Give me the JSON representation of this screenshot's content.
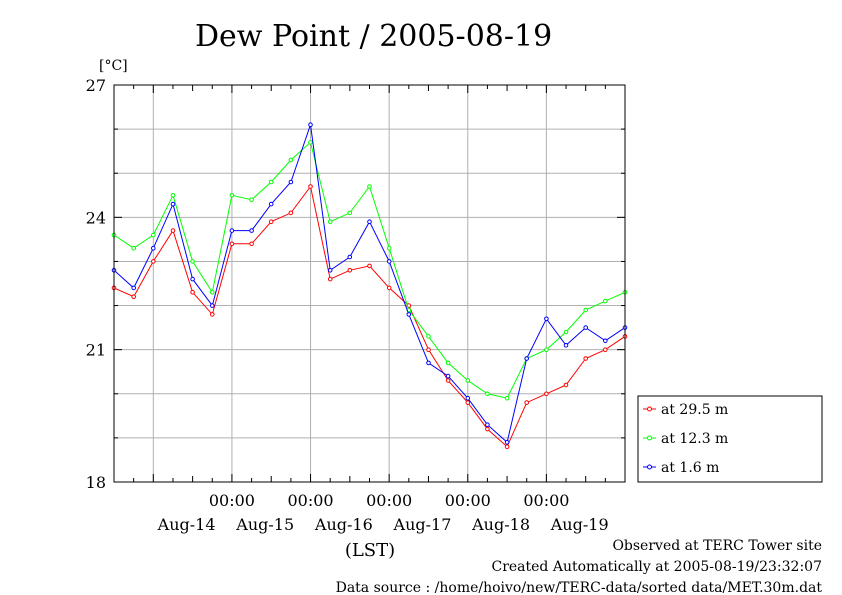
{
  "chart_data": {
    "type": "line",
    "title": "Dew Point / 2005-08-19",
    "y_unit": "[°C]",
    "xlabel": "(LST)",
    "ylim": [
      18,
      27
    ],
    "y_ticks": [
      18,
      21,
      24,
      27
    ],
    "x_start": "Aug-13 12:00",
    "x_end": "Aug-19 24:00",
    "time_ticks": [
      "00:00",
      "00:00",
      "00:00",
      "00:00",
      "00:00"
    ],
    "day_labels": [
      "Aug-14",
      "Aug-15",
      "Aug-16",
      "Aug-17",
      "Aug-18",
      "Aug-19"
    ],
    "grid": true,
    "legend_position": "right-bottom, outside plot",
    "x_hours_since_aug13_12": [
      0,
      6,
      12,
      18,
      24,
      30,
      36,
      42,
      48,
      54,
      60,
      66,
      72,
      78,
      84,
      90,
      96,
      102,
      108,
      114,
      120,
      126,
      132,
      138,
      144,
      150,
      156
    ],
    "series": [
      {
        "name": "at 29.5 m",
        "color": "#ff0000",
        "values": [
          22.4,
          22.2,
          23.0,
          23.7,
          22.3,
          21.8,
          23.4,
          23.4,
          23.9,
          24.1,
          24.7,
          22.6,
          22.8,
          22.9,
          22.4,
          22.0,
          21.0,
          20.3,
          19.8,
          19.2,
          18.8,
          19.8,
          20.0,
          20.2,
          20.8,
          21.0,
          21.3
        ]
      },
      {
        "name": "at 12.3 m",
        "color": "#00ff00",
        "values": [
          23.6,
          23.3,
          23.6,
          24.5,
          23.0,
          22.3,
          24.5,
          24.4,
          24.8,
          25.3,
          25.7,
          23.9,
          24.1,
          24.7,
          23.3,
          21.9,
          21.3,
          20.7,
          20.3,
          20.0,
          19.9,
          20.8,
          21.0,
          21.4,
          21.9,
          22.1,
          22.3
        ]
      },
      {
        "name": "at 1.6 m",
        "color": "#0000ff",
        "values": [
          22.8,
          22.4,
          23.3,
          24.3,
          22.6,
          22.0,
          23.7,
          23.7,
          24.3,
          24.8,
          26.1,
          22.8,
          23.1,
          23.9,
          23.0,
          21.8,
          20.7,
          20.4,
          19.9,
          19.3,
          18.9,
          20.8,
          21.7,
          21.1,
          21.5,
          21.2,
          21.5
        ]
      }
    ]
  },
  "legend": {
    "items": [
      {
        "label": "at 29.5 m",
        "color": "#ff0000"
      },
      {
        "label": "at 12.3 m",
        "color": "#00ff00"
      },
      {
        "label": "at 1.6 m",
        "color": "#0000ff"
      }
    ]
  },
  "footer": {
    "observed": "Observed at TERC Tower site",
    "created": "Created Automatically at 2005-08-19/23:32:07",
    "source": "Data source : /home/hoivo/new/TERC-data/sorted  data/MET.30m.dat"
  }
}
